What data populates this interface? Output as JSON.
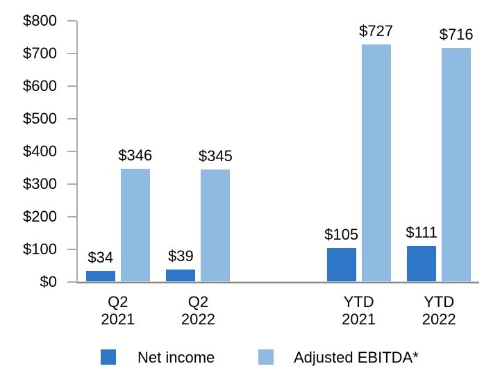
{
  "chart_data": {
    "type": "bar",
    "title": "",
    "categories": [
      {
        "line1": "Q2",
        "line2": "2021"
      },
      {
        "line1": "Q2",
        "line2": "2022"
      },
      {
        "line1": "YTD",
        "line2": "2021"
      },
      {
        "line1": "YTD",
        "line2": "2022"
      }
    ],
    "series": [
      {
        "name": "Net income",
        "color": "#2e76c7",
        "values": [
          34,
          39,
          105,
          111
        ],
        "labels": [
          "$34",
          "$39",
          "$105",
          "$111"
        ]
      },
      {
        "name": "Adjusted EBITDA*",
        "color": "#8fbbe3",
        "values": [
          346,
          345,
          727,
          716
        ],
        "labels": [
          "$346",
          "$345",
          "$727",
          "$716"
        ]
      }
    ],
    "y_axis": {
      "min": 0,
      "max": 800,
      "step": 100,
      "tick_labels": [
        "$0",
        "$100",
        "$200",
        "$300",
        "$400",
        "$500",
        "$600",
        "$700",
        "$800"
      ]
    },
    "legend": {
      "position": "bottom",
      "items": [
        {
          "label": "Net income",
          "color": "#2e76c7"
        },
        {
          "label": "Adjusted EBITDA*",
          "color": "#8fbbe3"
        }
      ]
    },
    "grid": false,
    "data_labels": true,
    "group_slots": [
      0,
      1,
      3,
      4
    ],
    "num_slots": 5,
    "axis_color": "#ababab",
    "baseline_color": "#8a8a8a"
  }
}
